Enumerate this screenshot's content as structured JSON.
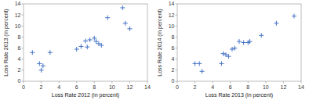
{
  "chart_data": [
    {
      "type": "scatter",
      "x_label": "Loss Rate 2012 (in percent)",
      "y_label": "Loss Rate 2013 (in percent)",
      "xlim": [
        0,
        14
      ],
      "ylim": [
        0,
        14
      ],
      "xticks": [
        0,
        2,
        4,
        6,
        8,
        10,
        12,
        14
      ],
      "yticks": [
        0,
        2,
        4,
        6,
        8,
        10,
        12,
        14
      ],
      "x": [
        1.0,
        1.8,
        2.0,
        2.2,
        3.0,
        6.0,
        6.5,
        7.0,
        7.2,
        7.5,
        8.0,
        8.2,
        8.5,
        8.8,
        9.5,
        11.2,
        11.5,
        12.0
      ],
      "values": [
        5.2,
        3.2,
        2.0,
        2.8,
        5.2,
        5.8,
        6.3,
        7.3,
        6.2,
        7.5,
        7.8,
        7.2,
        6.8,
        6.5,
        11.5,
        13.3,
        10.5,
        9.5
      ],
      "color": "#4472C4",
      "marker": "plus",
      "grid": false
    },
    {
      "type": "scatter",
      "x_label": "Loss Rate 2013 (in percent)",
      "y_label": "Loss Rate 2014 (in percent)",
      "xlim": [
        0,
        14
      ],
      "ylim": [
        0,
        14
      ],
      "xticks": [
        0,
        2,
        4,
        6,
        8,
        10,
        12,
        14
      ],
      "yticks": [
        0,
        2,
        4,
        6,
        8,
        10,
        12,
        14
      ],
      "x": [
        2.0,
        2.5,
        2.8,
        5.0,
        5.2,
        5.5,
        5.8,
        6.2,
        6.5,
        7.0,
        7.5,
        8.0,
        8.2,
        9.5,
        11.2,
        13.2
      ],
      "values": [
        3.2,
        3.2,
        1.8,
        3.2,
        5.0,
        4.8,
        4.5,
        5.8,
        6.0,
        7.2,
        7.0,
        7.0,
        7.2,
        8.3,
        10.5,
        11.8
      ],
      "color": "#4472C4",
      "marker": "plus",
      "grid": false
    }
  ]
}
